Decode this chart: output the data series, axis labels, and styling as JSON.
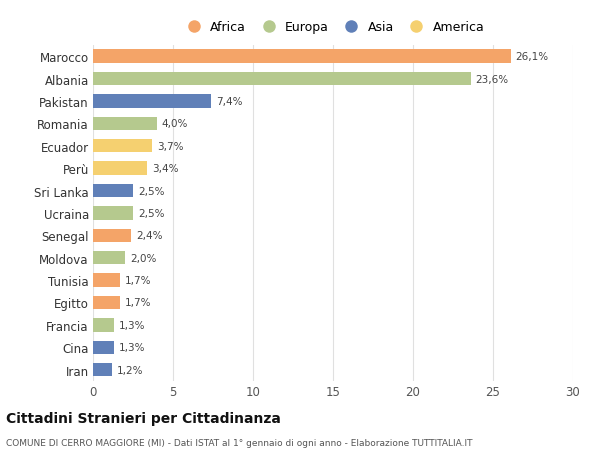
{
  "categories": [
    "Marocco",
    "Albania",
    "Pakistan",
    "Romania",
    "Ecuador",
    "Perù",
    "Sri Lanka",
    "Ucraina",
    "Senegal",
    "Moldova",
    "Tunisia",
    "Egitto",
    "Francia",
    "Cina",
    "Iran"
  ],
  "values": [
    26.1,
    23.6,
    7.4,
    4.0,
    3.7,
    3.4,
    2.5,
    2.5,
    2.4,
    2.0,
    1.7,
    1.7,
    1.3,
    1.3,
    1.2
  ],
  "labels": [
    "26,1%",
    "23,6%",
    "7,4%",
    "4,0%",
    "3,7%",
    "3,4%",
    "2,5%",
    "2,5%",
    "2,4%",
    "2,0%",
    "1,7%",
    "1,7%",
    "1,3%",
    "1,3%",
    "1,2%"
  ],
  "continents": [
    "Africa",
    "Europa",
    "Asia",
    "Europa",
    "America",
    "America",
    "Asia",
    "Europa",
    "Africa",
    "Europa",
    "Africa",
    "Africa",
    "Europa",
    "Asia",
    "Asia"
  ],
  "continent_colors": {
    "Africa": "#F4A468",
    "Europa": "#B5C98E",
    "Asia": "#6080B8",
    "America": "#F5D070"
  },
  "legend_order": [
    "Africa",
    "Europa",
    "Asia",
    "America"
  ],
  "title": "Cittadini Stranieri per Cittadinanza",
  "subtitle": "COMUNE DI CERRO MAGGIORE (MI) - Dati ISTAT al 1° gennaio di ogni anno - Elaborazione TUTTITALIA.IT",
  "xlim": [
    0,
    30
  ],
  "xticks": [
    0,
    5,
    10,
    15,
    20,
    25,
    30
  ],
  "bg_color": "#ffffff",
  "grid_color": "#e0e0e0",
  "bar_height": 0.6
}
